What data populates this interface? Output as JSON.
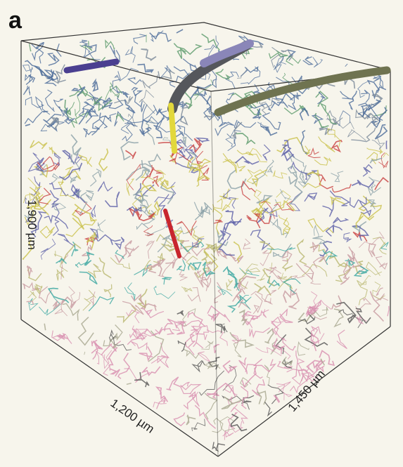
{
  "panel_label": "a",
  "axis_labels": {
    "height": "1,900 µm",
    "depth": "1,200 µm",
    "width": "1,450 µm"
  }
}
